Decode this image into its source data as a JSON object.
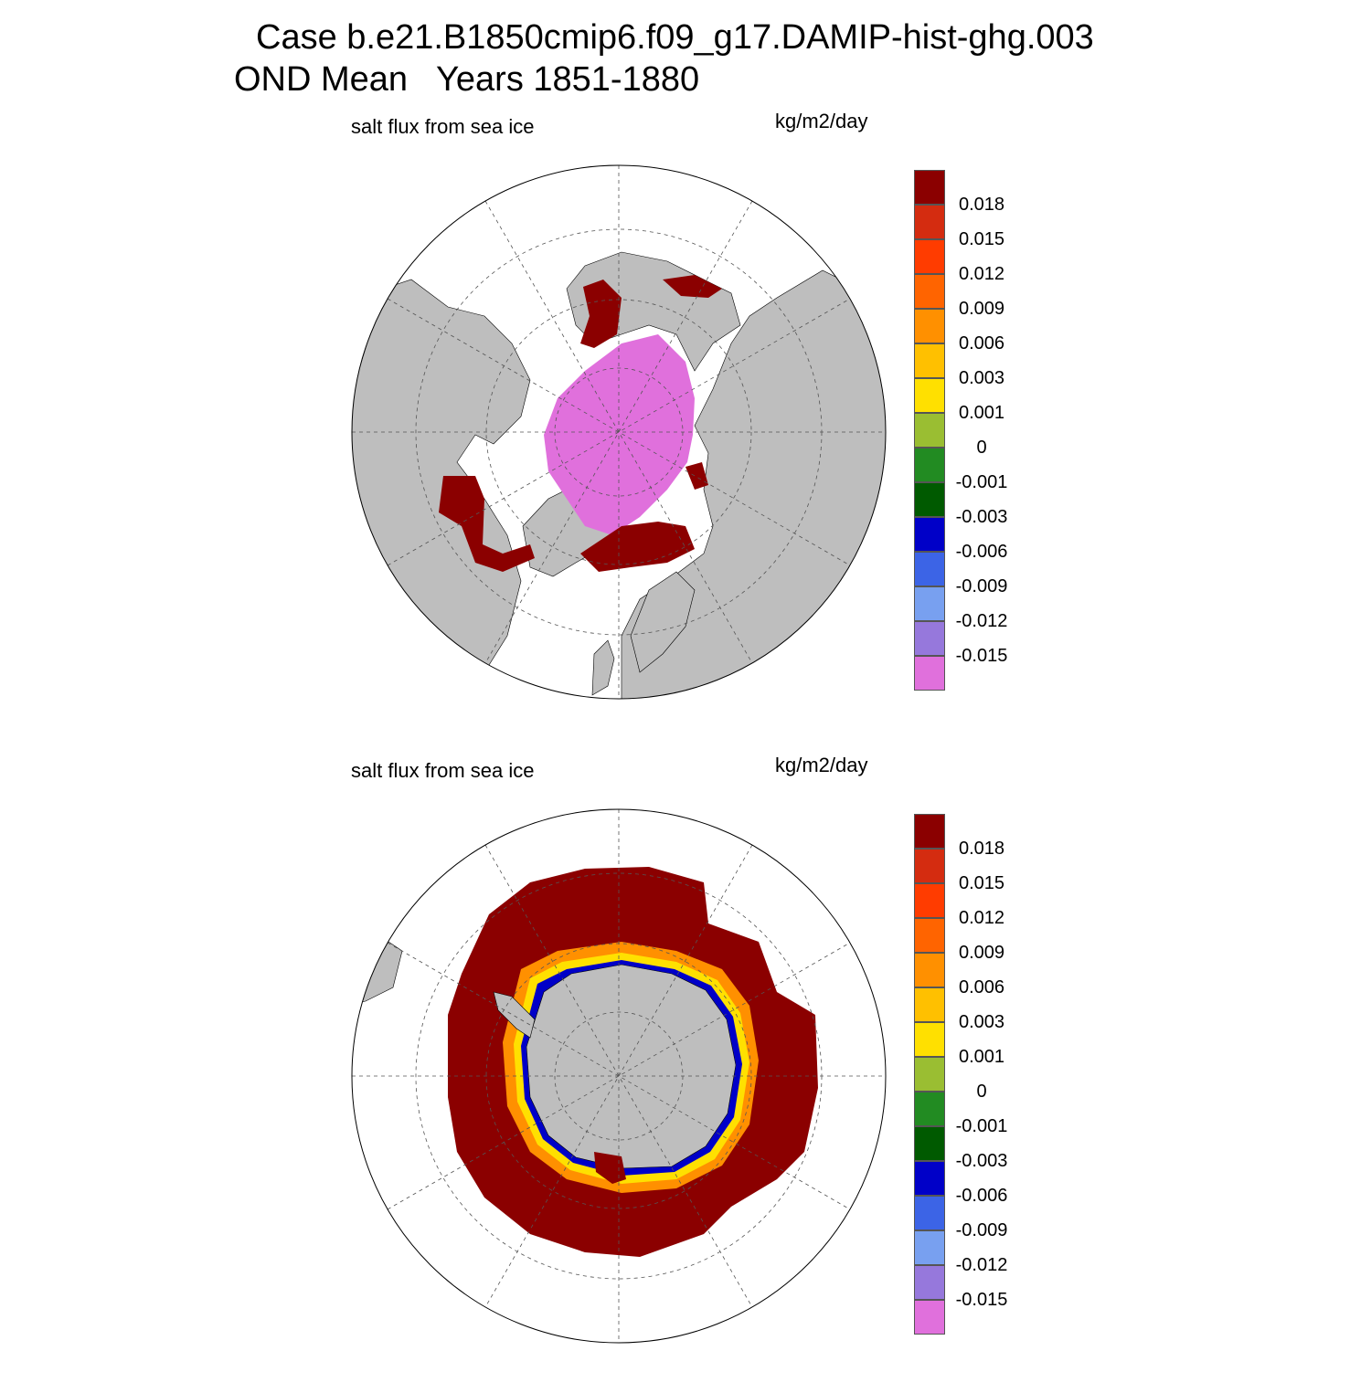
{
  "title": {
    "line1": "Case b.e21.B1850cmip6.f09_g17.DAMIP-hist-ghg.003",
    "line2": "OND Mean   Years 1851-1880"
  },
  "panels": [
    {
      "id": "north",
      "hemisphere": "Northern Hemisphere polar stereographic",
      "left_label": "salt flux from sea ice",
      "right_label": "kg/m2/day"
    },
    {
      "id": "south",
      "hemisphere": "Southern Hemisphere polar stereographic",
      "left_label": "salt flux from sea ice",
      "right_label": "kg/m2/day"
    }
  ],
  "colorbar": {
    "labels": [
      "0.018",
      "0.015",
      "0.012",
      "0.009",
      "0.006",
      "0.003",
      "0.001",
      "0",
      "-0.001",
      "-0.003",
      "-0.006",
      "-0.009",
      "-0.012",
      "-0.015"
    ],
    "colors": [
      "#8b0000",
      "#d42c10",
      "#ff3c00",
      "#ff6400",
      "#ff9000",
      "#ffc000",
      "#ffe000",
      "#9abe32",
      "#228b22",
      "#005a00",
      "#0000c8",
      "#3c64e6",
      "#78a0f0",
      "#9678dc",
      "#e070dc"
    ]
  },
  "colors": {
    "land": "#bebebe",
    "ocean": "#ffffff",
    "grid": "#555555",
    "high_positive": "#8b0000",
    "strong_negative": "#e070dc"
  }
}
